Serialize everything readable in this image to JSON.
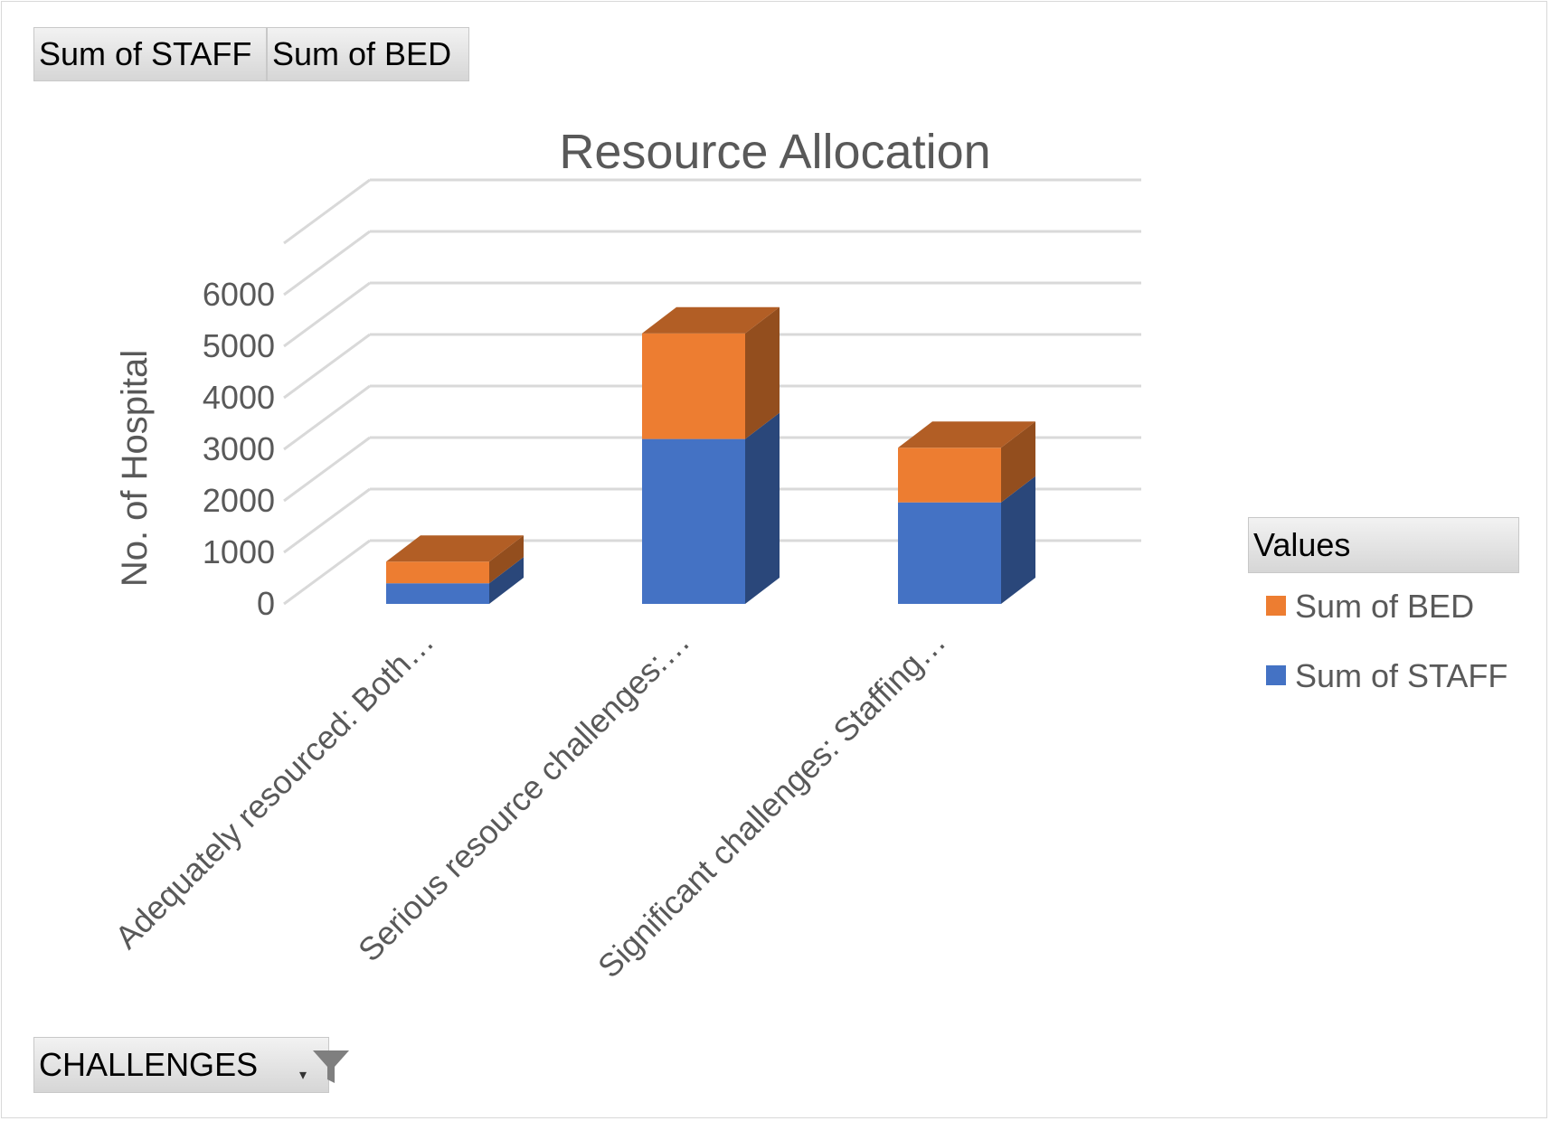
{
  "pivot_fields": {
    "value_buttons": [
      "Sum of STAFF",
      "Sum of BED"
    ],
    "filter_button": "CHALLENGES",
    "filter_icon": "funnel-icon",
    "dropdown_icon": "dropdown-arrow-icon"
  },
  "legend": {
    "header": "Values",
    "items": [
      {
        "label": "Sum of BED",
        "color": "#ED7D31"
      },
      {
        "label": "Sum of STAFF",
        "color": "#4472C4"
      }
    ]
  },
  "chart_data": {
    "type": "bar",
    "stacked": true,
    "three_d": true,
    "title": "Resource Allocation",
    "xlabel": "",
    "ylabel": "No. of Hospital",
    "ylim": [
      0,
      7000
    ],
    "yticks": [
      0,
      1000,
      2000,
      3000,
      4000,
      5000,
      6000
    ],
    "grid": true,
    "legend_position": "right",
    "categories": [
      "Adequately resourced: Both…",
      "Serious resource challenges:…",
      "Significant challenges: Staffing…"
    ],
    "series": [
      {
        "name": "Sum of STAFF",
        "values": [
          400,
          3200,
          1970
        ],
        "color": "#4472C4"
      },
      {
        "name": "Sum of BED",
        "values": [
          420,
          2050,
          1060
        ],
        "color": "#ED7D31"
      }
    ]
  }
}
